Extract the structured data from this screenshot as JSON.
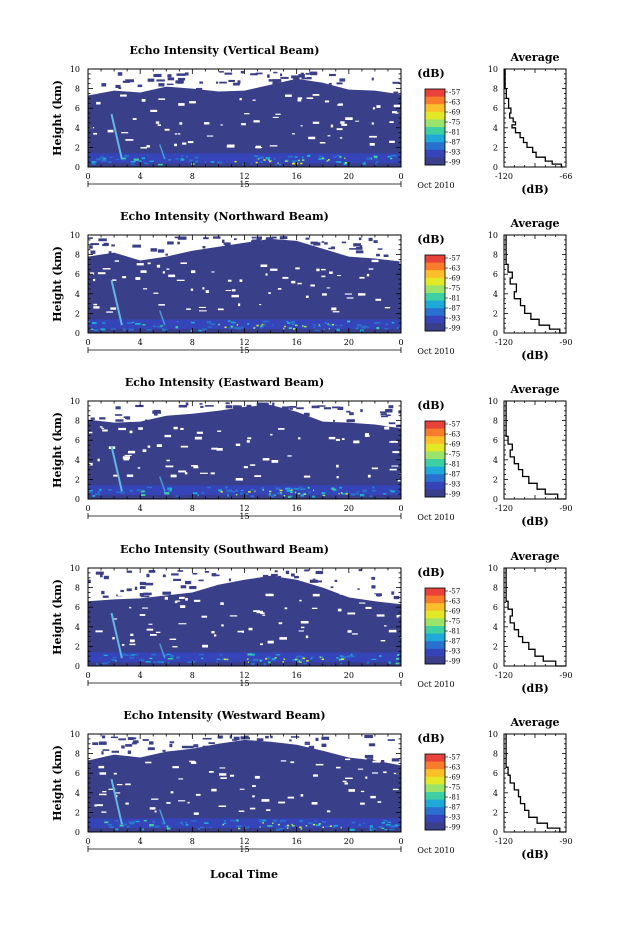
{
  "chart_data": {
    "type": "heatmap",
    "x_ticks": [
      "0",
      "4",
      "8",
      "12",
      "16",
      "20",
      "0"
    ],
    "y_ticks": [
      "0",
      "2",
      "4",
      "6",
      "8",
      "10"
    ],
    "ylabel": "Height (km)",
    "date_mark": "15",
    "date_right": "Oct 2010",
    "xlabel": "Local Time",
    "xlim": [
      0,
      24
    ],
    "ylim": [
      0,
      10
    ],
    "colorbar": {
      "unit": "(dB)",
      "ticks": [
        "-57",
        "-63",
        "-69",
        "-75",
        "-81",
        "-87",
        "-93",
        "-99"
      ],
      "colors": [
        "#e9423a",
        "#f97b2c",
        "#fcbf2a",
        "#e2e825",
        "#9be36a",
        "#3ecfa3",
        "#1fa9d9",
        "#2a70cf",
        "#3544b8",
        "#3a3f8a"
      ]
    },
    "panels": [
      {
        "title": "Echo Intensity (Vertical Beam)",
        "avg_title": "Average",
        "avg_xticks": [
          "-120",
          "-66"
        ],
        "avg_xlabel": "(dB)",
        "avg_xlim": [
          -120,
          -66
        ],
        "avg_profile": [
          [
            -68,
            0
          ],
          [
            -70,
            0.3
          ],
          [
            -78,
            0.6
          ],
          [
            -84,
            1.0
          ],
          [
            -92,
            1.5
          ],
          [
            -95,
            2.0
          ],
          [
            -100,
            2.5
          ],
          [
            -103,
            3.0
          ],
          [
            -106,
            3.5
          ],
          [
            -110,
            4.0
          ],
          [
            -113,
            4.3
          ],
          [
            -110,
            4.6
          ],
          [
            -112,
            5.0
          ],
          [
            -115,
            5.5
          ],
          [
            -114,
            6.0
          ],
          [
            -116,
            7.0
          ],
          [
            -118,
            8.0
          ],
          [
            -119,
            10.0
          ]
        ],
        "top_profile": [
          [
            0,
            7.3
          ],
          [
            2,
            7.8
          ],
          [
            4,
            7.6
          ],
          [
            6,
            8.2
          ],
          [
            8,
            8.0
          ],
          [
            10,
            7.7
          ],
          [
            12,
            7.8
          ],
          [
            14,
            8.4
          ],
          [
            16,
            9.0
          ],
          [
            18,
            8.6
          ],
          [
            20,
            7.9
          ],
          [
            22,
            7.8
          ],
          [
            24,
            7.4
          ]
        ]
      },
      {
        "title": "Echo Intensity (Northward Beam)",
        "avg_title": "Average",
        "avg_xticks": [
          "-120",
          "-90"
        ],
        "avg_xlabel": "(dB)",
        "avg_xlim": [
          -120,
          -90
        ],
        "avg_profile": [
          [
            -90,
            0
          ],
          [
            -93,
            0.4
          ],
          [
            -98,
            0.8
          ],
          [
            -103,
            1.4
          ],
          [
            -107,
            2.0
          ],
          [
            -110,
            2.8
          ],
          [
            -112,
            3.5
          ],
          [
            -115,
            4.2
          ],
          [
            -114,
            5.0
          ],
          [
            -117,
            5.6
          ],
          [
            -116,
            6.2
          ],
          [
            -118,
            7.0
          ],
          [
            -119,
            8.0
          ],
          [
            -119,
            10.0
          ]
        ],
        "top_profile": [
          [
            0,
            7.8
          ],
          [
            2,
            8.2
          ],
          [
            4,
            7.4
          ],
          [
            6,
            7.8
          ],
          [
            8,
            8.4
          ],
          [
            10,
            8.8
          ],
          [
            12,
            9.2
          ],
          [
            14,
            9.6
          ],
          [
            16,
            9.4
          ],
          [
            18,
            8.6
          ],
          [
            20,
            7.8
          ],
          [
            22,
            7.6
          ],
          [
            24,
            7.3
          ]
        ]
      },
      {
        "title": "Echo Intensity (Eastward Beam)",
        "avg_title": "Average",
        "avg_xticks": [
          "-120",
          "-90"
        ],
        "avg_xlabel": "(dB)",
        "avg_xlim": [
          -120,
          -90
        ],
        "avg_profile": [
          [
            -90,
            0
          ],
          [
            -94,
            0.5
          ],
          [
            -100,
            1.0
          ],
          [
            -104,
            1.6
          ],
          [
            -108,
            2.3
          ],
          [
            -111,
            3.0
          ],
          [
            -113,
            3.6
          ],
          [
            -115,
            4.3
          ],
          [
            -117,
            5.0
          ],
          [
            -116,
            5.6
          ],
          [
            -118,
            6.4
          ],
          [
            -119,
            7.5
          ],
          [
            -119,
            10.0
          ]
        ],
        "top_profile": [
          [
            0,
            8.1
          ],
          [
            2,
            7.8
          ],
          [
            4,
            7.9
          ],
          [
            6,
            8.5
          ],
          [
            8,
            8.7
          ],
          [
            10,
            9.0
          ],
          [
            12,
            9.4
          ],
          [
            14,
            9.6
          ],
          [
            16,
            8.9
          ],
          [
            18,
            7.9
          ],
          [
            20,
            7.8
          ],
          [
            22,
            7.6
          ],
          [
            24,
            7.2
          ]
        ]
      },
      {
        "title": "Echo Intensity (Southward Beam)",
        "avg_title": "Average",
        "avg_xticks": [
          "-120",
          "-90"
        ],
        "avg_xlabel": "(dB)",
        "avg_xlim": [
          -120,
          -90
        ],
        "avg_profile": [
          [
            -90,
            0
          ],
          [
            -95,
            0.5
          ],
          [
            -101,
            1.0
          ],
          [
            -105,
            1.7
          ],
          [
            -108,
            2.4
          ],
          [
            -111,
            3.0
          ],
          [
            -113,
            3.7
          ],
          [
            -115,
            4.4
          ],
          [
            -117,
            5.1
          ],
          [
            -116,
            5.8
          ],
          [
            -118,
            6.6
          ],
          [
            -119,
            7.8
          ],
          [
            -119,
            10.0
          ]
        ],
        "top_profile": [
          [
            0,
            6.6
          ],
          [
            2,
            6.8
          ],
          [
            4,
            6.9
          ],
          [
            6,
            7.2
          ],
          [
            8,
            7.5
          ],
          [
            10,
            8.3
          ],
          [
            12,
            8.8
          ],
          [
            14,
            9.2
          ],
          [
            16,
            8.8
          ],
          [
            18,
            8.0
          ],
          [
            20,
            7.0
          ],
          [
            22,
            6.6
          ],
          [
            24,
            6.3
          ]
        ]
      },
      {
        "title": "Echo Intensity (Westward Beam)",
        "avg_title": "Average",
        "avg_xticks": [
          "-120",
          "-90"
        ],
        "avg_xlabel": "(dB)",
        "avg_xlim": [
          -120,
          -90
        ],
        "avg_profile": [
          [
            -90,
            0
          ],
          [
            -93,
            0.4
          ],
          [
            -99,
            0.9
          ],
          [
            -104,
            1.5
          ],
          [
            -108,
            2.2
          ],
          [
            -110,
            2.9
          ],
          [
            -112,
            3.6
          ],
          [
            -113,
            4.3
          ],
          [
            -115,
            5.0
          ],
          [
            -117,
            5.8
          ],
          [
            -118,
            6.6
          ],
          [
            -119,
            7.8
          ],
          [
            -119,
            10.0
          ]
        ],
        "top_profile": [
          [
            0,
            7.3
          ],
          [
            2,
            7.9
          ],
          [
            4,
            7.6
          ],
          [
            6,
            8.2
          ],
          [
            8,
            8.5
          ],
          [
            10,
            9.0
          ],
          [
            12,
            9.4
          ],
          [
            14,
            9.2
          ],
          [
            16,
            8.9
          ],
          [
            18,
            8.3
          ],
          [
            20,
            7.6
          ],
          [
            22,
            7.3
          ],
          [
            24,
            6.8
          ]
        ]
      }
    ]
  }
}
